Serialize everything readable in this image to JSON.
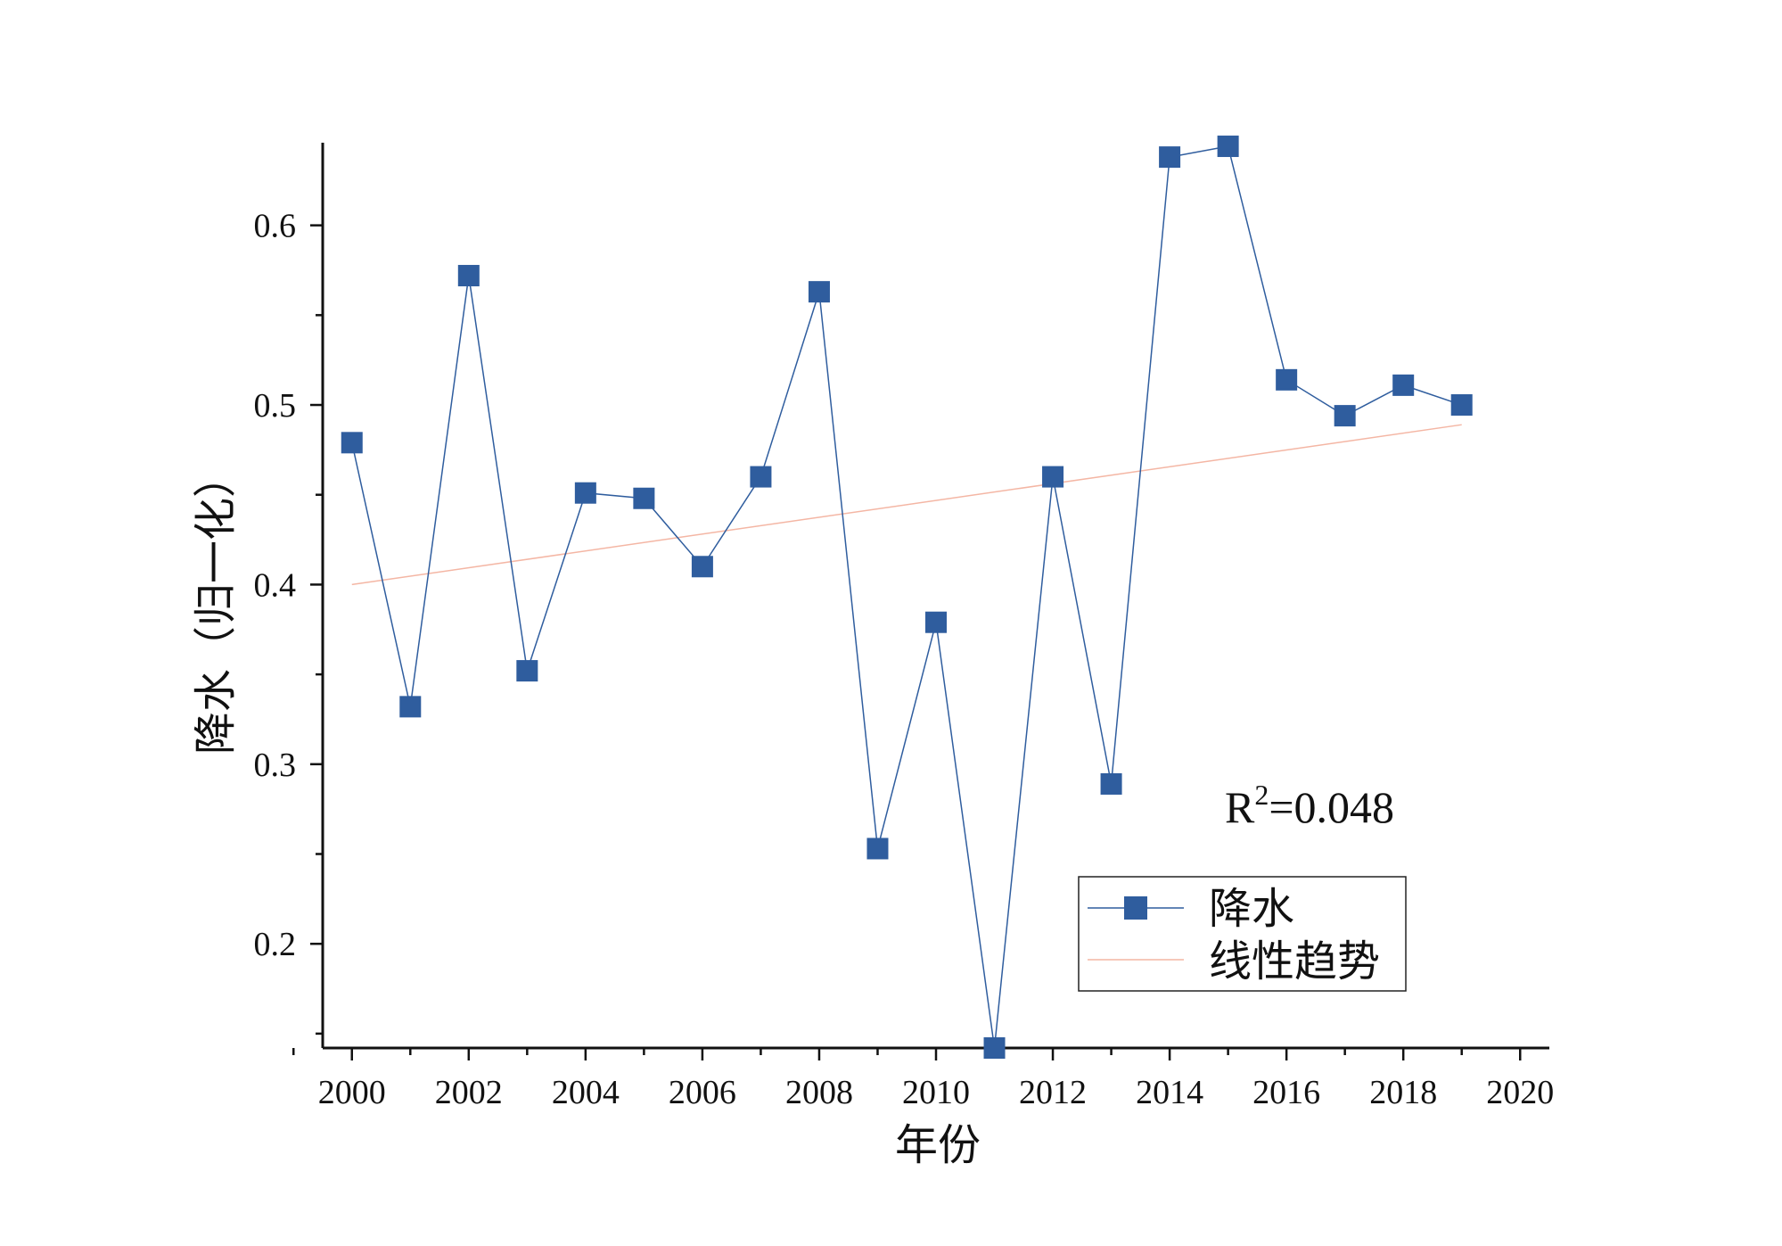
{
  "chart_data": {
    "type": "line",
    "title": "",
    "xlabel": "年份",
    "ylabel": "降水（归一化）",
    "xlim": [
      1999.5,
      2020.5
    ],
    "ylim": [
      0.142,
      0.646
    ],
    "x_ticks": [
      2000,
      2002,
      2004,
      2006,
      2008,
      2010,
      2012,
      2014,
      2016,
      2018,
      2020
    ],
    "x_tick_labels": [
      "2000",
      "2002",
      "2004",
      "2006",
      "2008",
      "2010",
      "2012",
      "2014",
      "2016",
      "2018",
      "2020"
    ],
    "y_ticks": [
      0.2,
      0.3,
      0.4,
      0.5,
      0.6
    ],
    "y_tick_labels": [
      "0.2",
      "0.3",
      "0.4",
      "0.5",
      "0.6"
    ],
    "grid": false,
    "series": [
      {
        "name": "降水",
        "color": "#2f5d9e",
        "marker": "square",
        "x": [
          2000,
          2001,
          2002,
          2003,
          2004,
          2005,
          2006,
          2007,
          2008,
          2009,
          2010,
          2011,
          2012,
          2013,
          2014,
          2015,
          2016,
          2017,
          2018,
          2019
        ],
        "values": [
          0.479,
          0.332,
          0.572,
          0.352,
          0.451,
          0.448,
          0.41,
          0.46,
          0.563,
          0.253,
          0.379,
          0.142,
          0.46,
          0.289,
          0.638,
          0.644,
          0.514,
          0.494,
          0.511,
          0.5
        ]
      },
      {
        "name": "线性趋势",
        "color": "#f4b6a4",
        "marker": "none",
        "x": [
          2000,
          2019
        ],
        "values": [
          0.4,
          0.489
        ]
      }
    ],
    "annotations": [
      {
        "base": "R",
        "sup": "2",
        "rest": "=0.048"
      }
    ],
    "legend": {
      "position": "bottom-right",
      "entries": [
        "降水",
        "线性趋势"
      ]
    }
  }
}
